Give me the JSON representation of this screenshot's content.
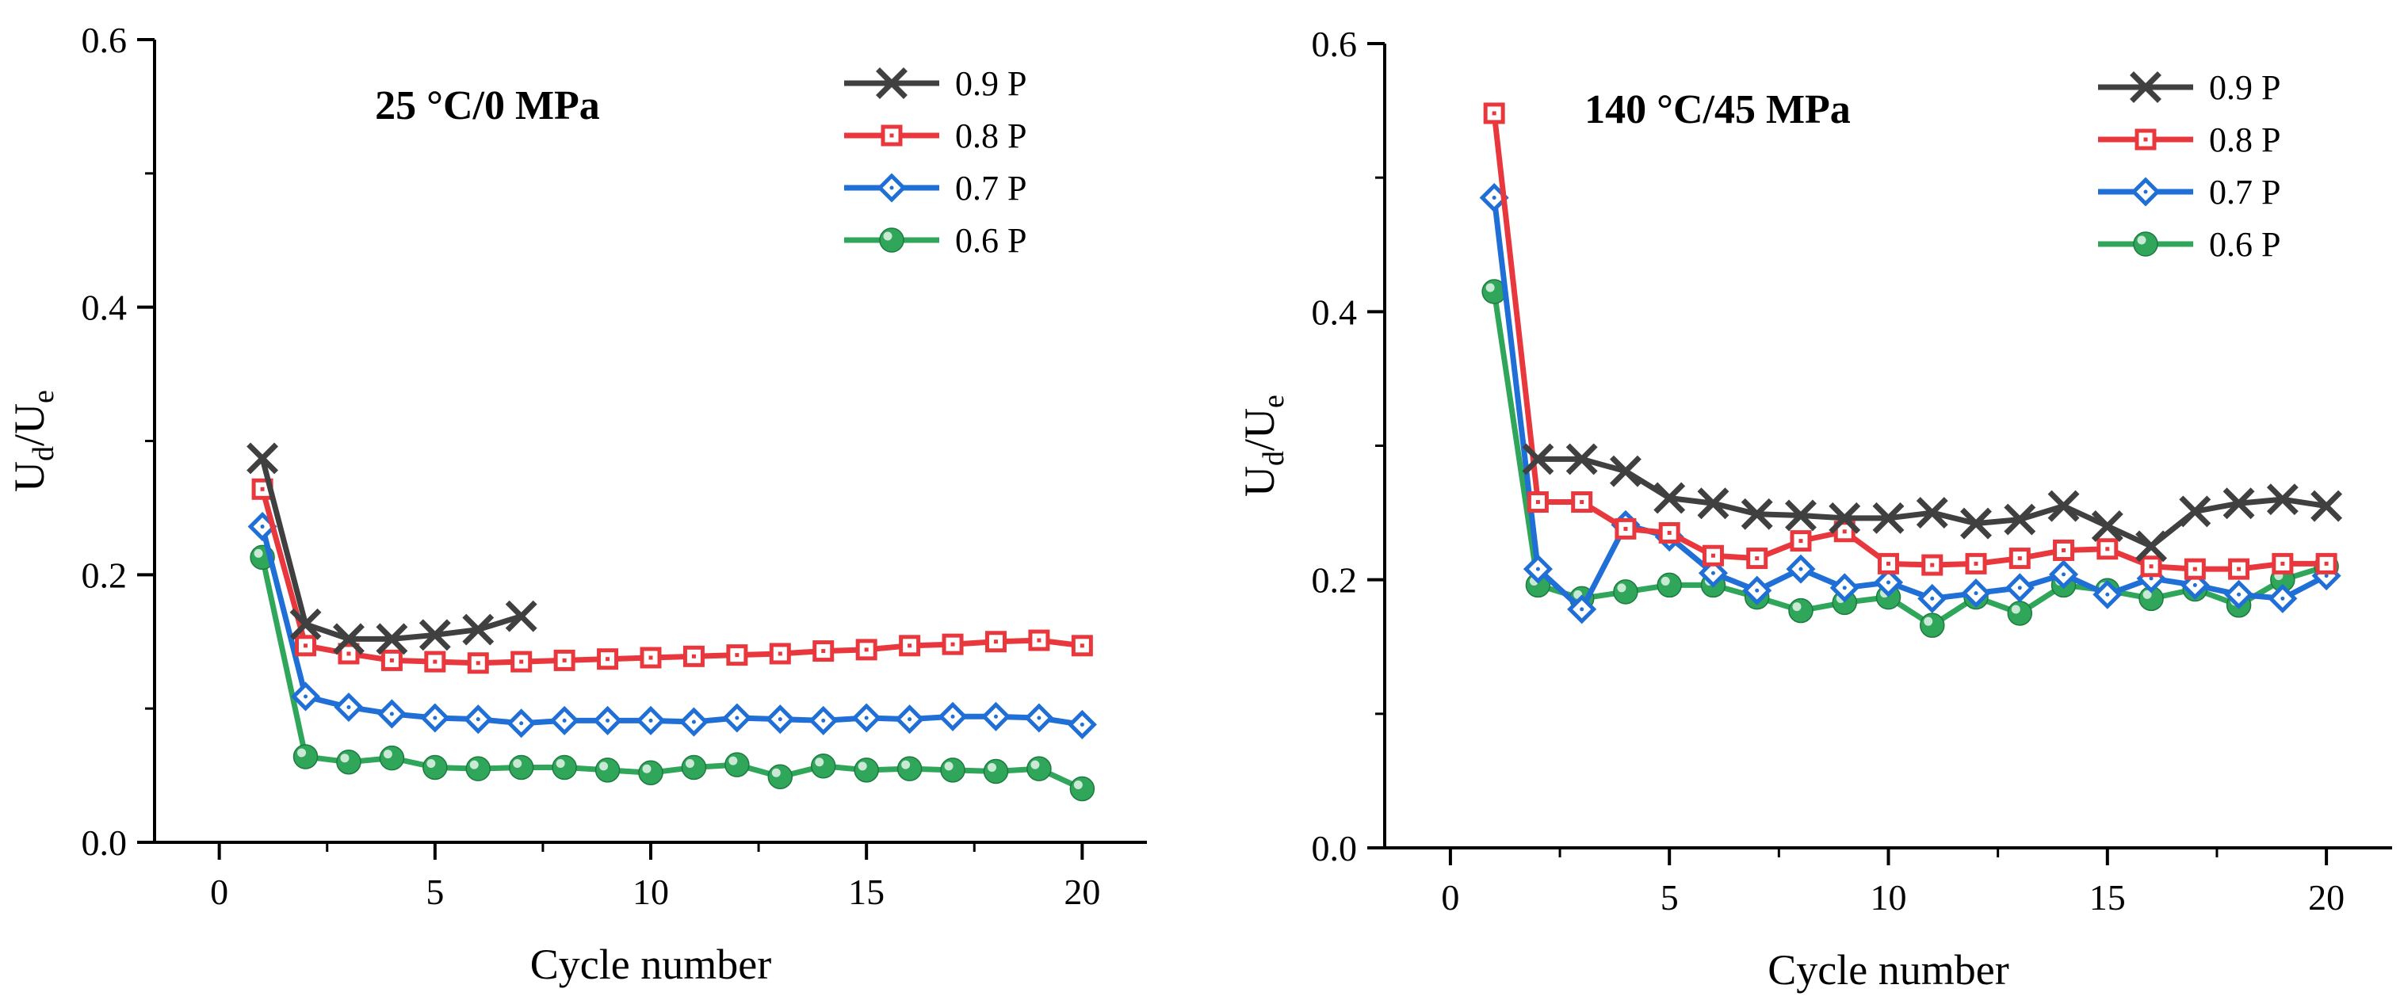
{
  "chart_data": [
    {
      "type": "line",
      "title": "25 °C/0 MPa",
      "xlabel": "Cycle number",
      "ylabel": {
        "main": "U",
        "sub1": "d",
        "mid": "/U",
        "sub2": "e"
      },
      "xlim": [
        -1.5,
        21.5
      ],
      "ylim": [
        0,
        0.6
      ],
      "xticks": [
        "0",
        "5",
        "10",
        "15",
        "20"
      ],
      "yticks": [
        "0.0",
        "0.2",
        "0.4",
        "0.6"
      ],
      "legend_position": "top-right",
      "grid": false,
      "series": [
        {
          "name": "0.9 P",
          "color": "#404040",
          "marker": "x",
          "x": [
            1,
            2,
            3,
            4,
            5,
            6,
            7
          ],
          "y": [
            0.287,
            0.163,
            0.152,
            0.152,
            0.155,
            0.159,
            0.169
          ]
        },
        {
          "name": "0.8 P",
          "color": "#e8383d",
          "marker": "square",
          "x": [
            1,
            2,
            3,
            4,
            5,
            6,
            7,
            8,
            9,
            10,
            11,
            12,
            13,
            14,
            15,
            16,
            17,
            18,
            19,
            20
          ],
          "y": [
            0.264,
            0.147,
            0.141,
            0.136,
            0.135,
            0.134,
            0.135,
            0.136,
            0.137,
            0.138,
            0.139,
            0.14,
            0.141,
            0.143,
            0.144,
            0.147,
            0.148,
            0.15,
            0.151,
            0.147
          ]
        },
        {
          "name": "0.7 P",
          "color": "#1f6fd6",
          "marker": "diamond",
          "x": [
            1,
            2,
            3,
            4,
            5,
            6,
            7,
            8,
            9,
            10,
            11,
            12,
            13,
            14,
            15,
            16,
            17,
            18,
            19,
            20
          ],
          "y": [
            0.236,
            0.109,
            0.101,
            0.096,
            0.093,
            0.092,
            0.089,
            0.091,
            0.091,
            0.091,
            0.09,
            0.093,
            0.092,
            0.091,
            0.093,
            0.092,
            0.094,
            0.094,
            0.093,
            0.088
          ]
        },
        {
          "name": "0.6 P",
          "color": "#2fa65a",
          "marker": "circle",
          "x": [
            1,
            2,
            3,
            4,
            5,
            6,
            7,
            8,
            9,
            10,
            11,
            12,
            13,
            14,
            15,
            16,
            17,
            18,
            19,
            20
          ],
          "y": [
            0.213,
            0.064,
            0.06,
            0.063,
            0.056,
            0.055,
            0.056,
            0.056,
            0.054,
            0.052,
            0.056,
            0.058,
            0.049,
            0.057,
            0.054,
            0.055,
            0.054,
            0.053,
            0.055,
            0.04
          ]
        }
      ]
    },
    {
      "type": "line",
      "title": "140 °C/45 MPa",
      "xlabel": "Cycle number",
      "ylabel": {
        "main": "U",
        "sub1": "d",
        "mid": "/U",
        "sub2": "e"
      },
      "xlim": [
        -1.5,
        21.5
      ],
      "ylim": [
        0,
        0.6
      ],
      "xticks": [
        "0",
        "5",
        "10",
        "15",
        "20"
      ],
      "yticks": [
        "0.0",
        "0.2",
        "0.4",
        "0.6"
      ],
      "legend_position": "top-right",
      "grid": false,
      "series": [
        {
          "name": "0.9 P",
          "color": "#404040",
          "marker": "x",
          "x": [
            2,
            3,
            4,
            5,
            6,
            7,
            8,
            9,
            10,
            11,
            12,
            13,
            14,
            15,
            16,
            17,
            18,
            19,
            20
          ],
          "y": [
            0.29,
            0.29,
            0.281,
            0.261,
            0.257,
            0.249,
            0.248,
            0.246,
            0.246,
            0.25,
            0.242,
            0.245,
            0.255,
            0.24,
            0.225,
            0.251,
            0.257,
            0.26,
            0.255
          ]
        },
        {
          "name": "0.8 P",
          "color": "#e8383d",
          "marker": "square",
          "x": [
            1,
            2,
            3,
            4,
            5,
            6,
            7,
            8,
            9,
            10,
            11,
            12,
            13,
            14,
            15,
            16,
            17,
            18,
            19,
            20
          ],
          "y": [
            0.548,
            0.258,
            0.258,
            0.238,
            0.235,
            0.218,
            0.216,
            0.229,
            0.236,
            0.212,
            0.211,
            0.212,
            0.216,
            0.222,
            0.223,
            0.21,
            0.208,
            0.208,
            0.212,
            0.212
          ]
        },
        {
          "name": "0.7 P",
          "color": "#1f6fd6",
          "marker": "diamond",
          "x": [
            1,
            2,
            3,
            4,
            5,
            6,
            7,
            8,
            9,
            10,
            11,
            12,
            13,
            14,
            15,
            16,
            17,
            18,
            19,
            20
          ],
          "y": [
            0.485,
            0.208,
            0.178,
            0.241,
            0.232,
            0.205,
            0.192,
            0.208,
            0.194,
            0.198,
            0.186,
            0.19,
            0.194,
            0.204,
            0.189,
            0.201,
            0.196,
            0.189,
            0.186,
            0.203
          ]
        },
        {
          "name": "0.6 P",
          "color": "#2fa65a",
          "marker": "circle",
          "x": [
            1,
            2,
            3,
            4,
            5,
            6,
            7,
            8,
            9,
            10,
            11,
            12,
            13,
            14,
            15,
            16,
            17,
            18,
            19,
            20
          ],
          "y": [
            0.415,
            0.196,
            0.186,
            0.191,
            0.196,
            0.196,
            0.187,
            0.177,
            0.183,
            0.187,
            0.166,
            0.187,
            0.175,
            0.196,
            0.192,
            0.186,
            0.193,
            0.181,
            0.2,
            0.21
          ]
        }
      ]
    }
  ]
}
